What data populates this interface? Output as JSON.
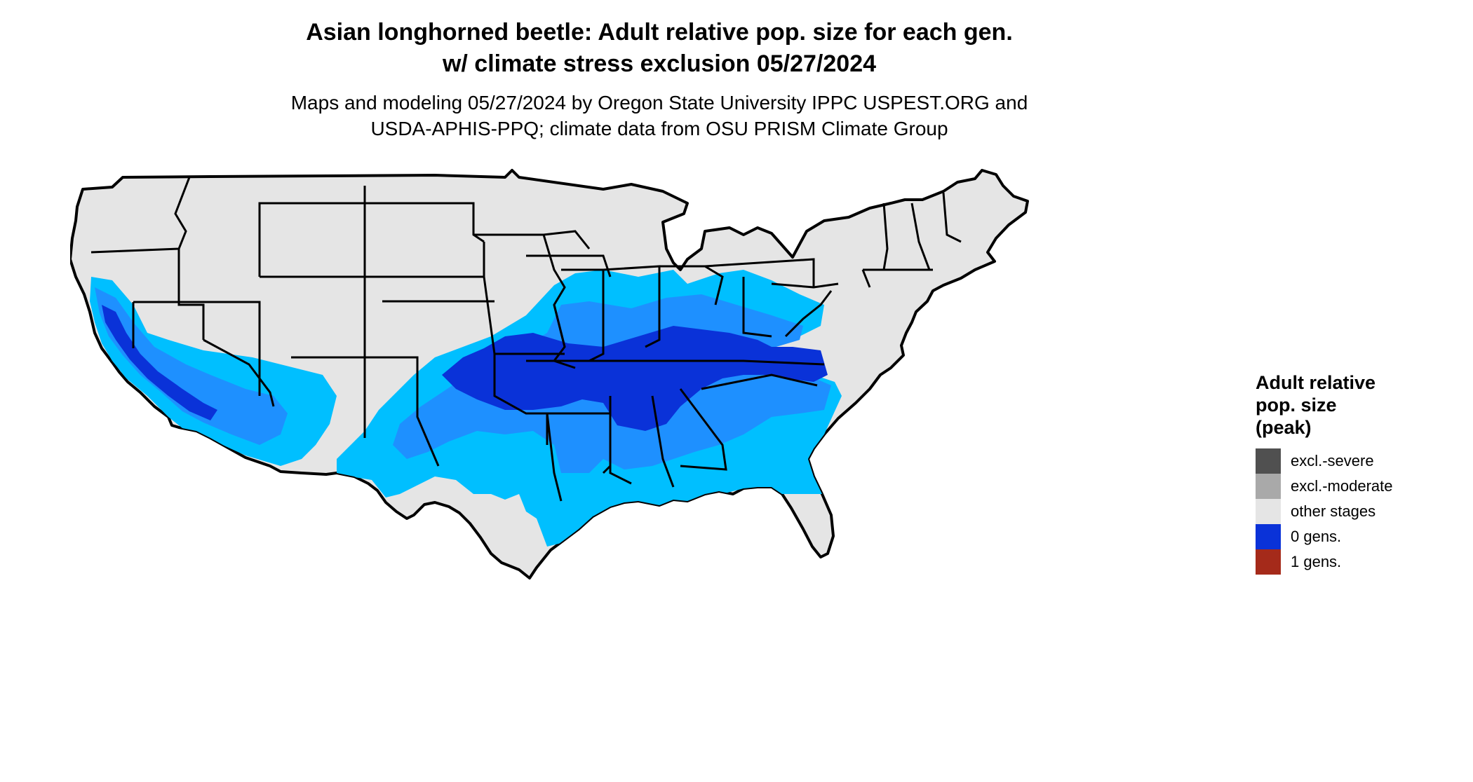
{
  "header": {
    "title_line1": "Asian longhorned beetle: Adult relative pop. size for each gen.",
    "title_line2": "w/ climate stress exclusion 05/27/2024",
    "subtitle_line1": "Maps and modeling 05/27/2024 by Oregon State University IPPC USPEST.ORG and",
    "subtitle_line2": "USDA-APHIS-PPQ; climate data from OSU PRISM Climate Group"
  },
  "legend": {
    "title_line1": "Adult relative",
    "title_line2": "pop. size",
    "title_line3": "(peak)",
    "items": [
      {
        "label": "excl.-severe",
        "color": "#505050"
      },
      {
        "label": "excl.-moderate",
        "color": "#a9a9a9"
      },
      {
        "label": "other stages",
        "color": "#e5e5e5"
      },
      {
        "label": "0 gens.",
        "color": "#0a32d8"
      },
      {
        "label": "1 gens.",
        "color": "#a52a1a"
      }
    ]
  },
  "map": {
    "land_color": "#e5e5e5",
    "border_color": "#000000",
    "intensity_colors": [
      "#00bfff",
      "#1e90ff",
      "#0a32d8"
    ]
  }
}
